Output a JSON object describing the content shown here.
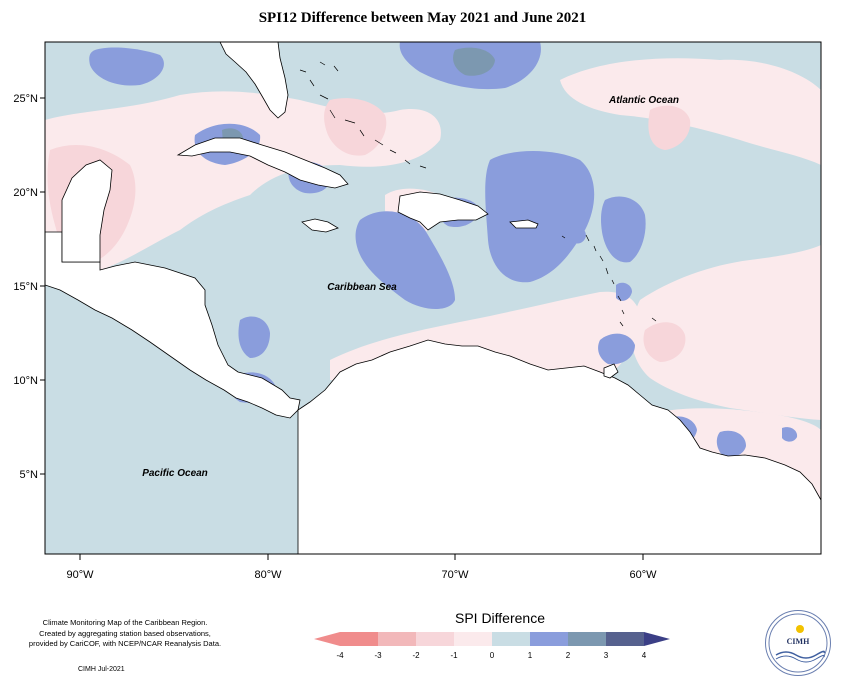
{
  "title": "SPI12 Difference between May 2021 and June 2021",
  "axes": {
    "longitude_labels": [
      "90°W",
      "80°W",
      "70°W",
      "60°W"
    ],
    "latitude_labels": [
      "25°N",
      "20°N",
      "15°N",
      "10°N",
      "5°N"
    ]
  },
  "map_labels": {
    "atlantic": "Atlantic Ocean",
    "caribbean": "Caribbean Sea",
    "pacific": "Pacific Ocean"
  },
  "credits": {
    "line1": "Climate Monitoring Map of the Caribbean Region.",
    "line2": "Created by aggregating station based observations,",
    "line3": "provided by CariCOF, with NCEP/NCAR Reanalysis Data.",
    "date": "CIMH Jul-2021"
  },
  "legend": {
    "title": "SPI Difference",
    "ticks": [
      "-4",
      "-3",
      "-2",
      "-1",
      "0",
      "1",
      "2",
      "3",
      "4"
    ],
    "colors": [
      "#f08c8c",
      "#f2b8ba",
      "#f7d6da",
      "#fbeaec",
      "#c9dde4",
      "#8a9ddc",
      "#7c98b0",
      "#56618e",
      "#3b3f86"
    ]
  },
  "logo": {
    "label": "CIMH"
  }
}
